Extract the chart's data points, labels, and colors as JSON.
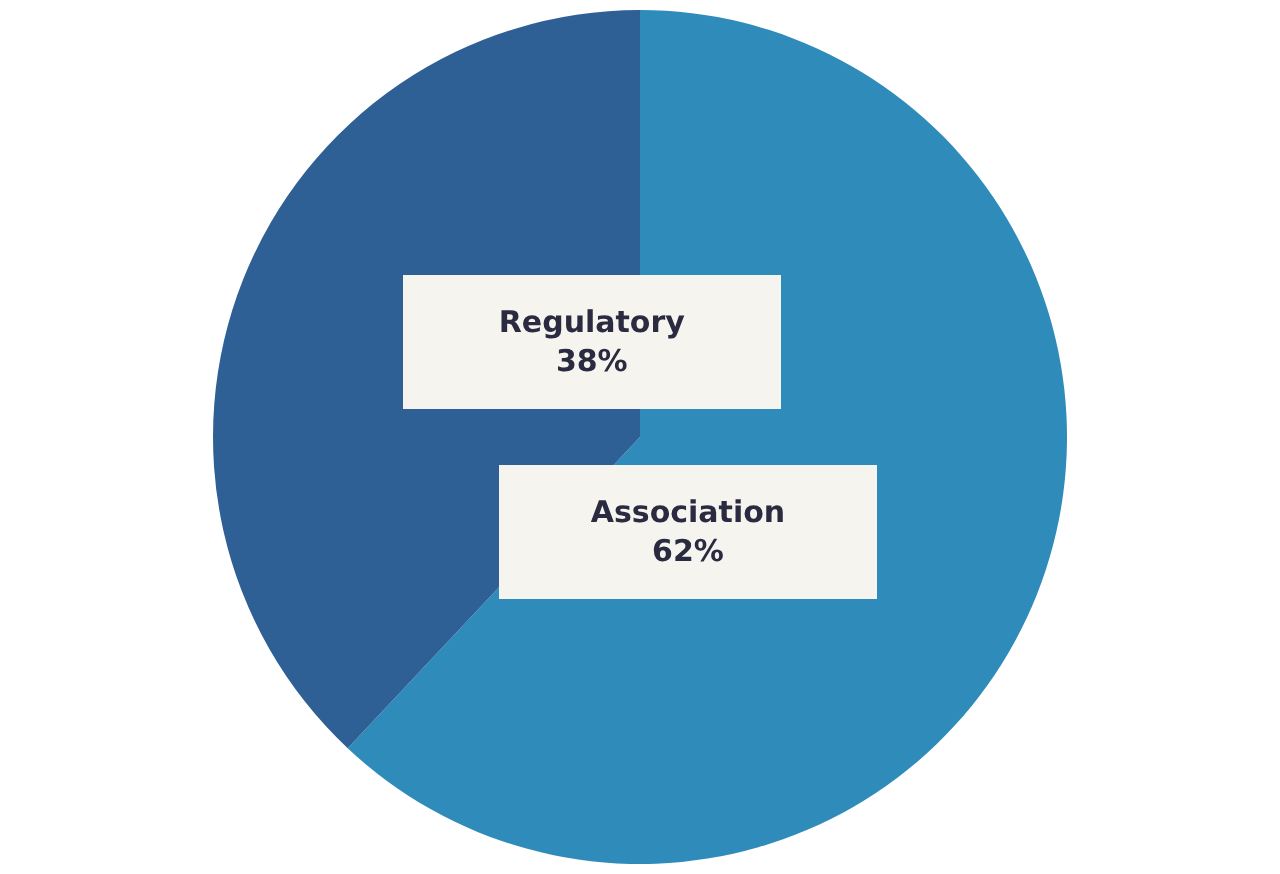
{
  "chart_data": {
    "type": "pie",
    "categories": [
      "Association",
      "Regulatory"
    ],
    "values": [
      62,
      38
    ],
    "colors": [
      "#2e8bba",
      "#2e6096"
    ],
    "value_labels": [
      "62%",
      "38%"
    ],
    "legend": false
  }
}
